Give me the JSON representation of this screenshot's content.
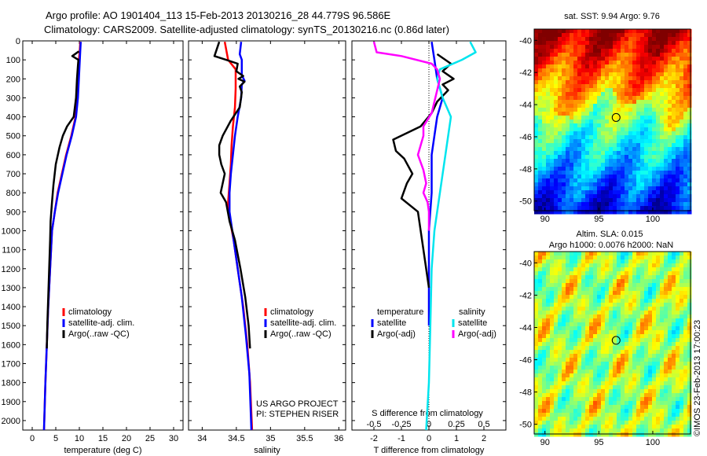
{
  "title": {
    "line1": "Argo profile: AO 1901404_113 15-Feb-2013 20130216_28 44.779S 96.586E",
    "line2": "Climatology: CARS2009. Satellite-adjusted climatology: synTS_20130216.nc (0.86d later)"
  },
  "credit": {
    "project": "US ARGO PROJECT",
    "pi": "PI: STEPHEN RISER",
    "stamp": "©IMOS 23-Feb-2013 17:00:23"
  },
  "colors": {
    "climatology": "#ff0000",
    "satellite": "#0000ff",
    "argo": "#000000",
    "satellite_salinity": "#00e5ee",
    "argo_salinity_adj": "#ff00ff"
  },
  "chart_data": [
    {
      "type": "line",
      "panel": "temperature",
      "xlabel": "temperature (deg C)",
      "ylabel": "",
      "xlim": [
        -2,
        32
      ],
      "ylim": [
        2050,
        0
      ],
      "xticks": [
        "0",
        "5",
        "10",
        "15",
        "20",
        "25",
        "30"
      ],
      "yticks": [
        "0",
        "100",
        "200",
        "300",
        "400",
        "500",
        "600",
        "700",
        "800",
        "900",
        "1000",
        "1100",
        "1200",
        "1300",
        "1400",
        "1500",
        "1600",
        "1700",
        "1800",
        "1900",
        "2000"
      ],
      "legend": [
        "climatology",
        "satellite-adj. clim.",
        "Argo(..raw -QC)"
      ],
      "series": [
        {
          "name": "climatology",
          "color": "#ff0000",
          "points": [
            [
              10.2,
              5
            ],
            [
              10.1,
              50
            ],
            [
              9.9,
              100
            ],
            [
              9.7,
              200
            ],
            [
              9.6,
              300
            ],
            [
              9.2,
              400
            ],
            [
              8.3,
              500
            ],
            [
              7.2,
              600
            ],
            [
              6.3,
              700
            ],
            [
              5.4,
              800
            ],
            [
              4.8,
              900
            ],
            [
              4.2,
              1000
            ],
            [
              3.8,
              1200
            ],
            [
              3.4,
              1400
            ],
            [
              3.1,
              1600
            ],
            [
              2.8,
              1800
            ],
            [
              2.5,
              2050
            ]
          ]
        },
        {
          "name": "satellite-adj. clim.",
          "color": "#0000ff",
          "points": [
            [
              10.3,
              5
            ],
            [
              10.2,
              50
            ],
            [
              10.1,
              100
            ],
            [
              9.9,
              200
            ],
            [
              9.7,
              300
            ],
            [
              9.3,
              400
            ],
            [
              8.4,
              500
            ],
            [
              7.3,
              600
            ],
            [
              6.4,
              700
            ],
            [
              5.5,
              800
            ],
            [
              4.8,
              900
            ],
            [
              4.2,
              1000
            ],
            [
              3.8,
              1200
            ],
            [
              3.4,
              1400
            ],
            [
              3.1,
              1600
            ],
            [
              2.8,
              1800
            ],
            [
              2.5,
              2050
            ]
          ]
        },
        {
          "name": "Argo(..raw -QC)",
          "color": "#000000",
          "points": [
            [
              9.9,
              55
            ],
            [
              8.5,
              80
            ],
            [
              9.8,
              100
            ],
            [
              9.7,
              130
            ],
            [
              9.5,
              200
            ],
            [
              9.3,
              300
            ],
            [
              8.8,
              400
            ],
            [
              7.4,
              450
            ],
            [
              6.5,
              500
            ],
            [
              5.8,
              560
            ],
            [
              5.0,
              650
            ],
            [
              4.5,
              760
            ],
            [
              4.2,
              850
            ],
            [
              3.9,
              950
            ],
            [
              3.8,
              1050
            ],
            [
              3.6,
              1200
            ],
            [
              3.4,
              1350
            ],
            [
              3.2,
              1500
            ],
            [
              3.1,
              1620
            ]
          ]
        }
      ]
    },
    {
      "type": "line",
      "panel": "salinity",
      "xlabel": "salinity",
      "ylabel": "",
      "xlim": [
        33.8,
        36.1
      ],
      "ylim": [
        2050,
        0
      ],
      "xticks": [
        "34",
        "34.5",
        "35",
        "35.5",
        "36"
      ],
      "legend": [
        "climatology",
        "satellite-adj. clim.",
        "Argo(..raw -QC)"
      ],
      "series": [
        {
          "name": "climatology",
          "color": "#ff0000",
          "points": [
            [
              34.33,
              5
            ],
            [
              34.38,
              100
            ],
            [
              34.49,
              150
            ],
            [
              34.49,
              250
            ],
            [
              34.48,
              350
            ],
            [
              34.45,
              450
            ],
            [
              34.43,
              550
            ],
            [
              34.42,
              650
            ],
            [
              34.4,
              750
            ],
            [
              34.38,
              850
            ],
            [
              34.41,
              950
            ],
            [
              34.46,
              1050
            ],
            [
              34.52,
              1200
            ],
            [
              34.6,
              1400
            ],
            [
              34.66,
              1600
            ],
            [
              34.7,
              1800
            ],
            [
              34.73,
              2050
            ]
          ]
        },
        {
          "name": "satellite-adj. clim.",
          "color": "#0000ff",
          "points": [
            [
              34.57,
              5
            ],
            [
              34.55,
              70
            ],
            [
              34.58,
              100
            ],
            [
              34.58,
              180
            ],
            [
              34.62,
              210
            ],
            [
              34.58,
              230
            ],
            [
              34.57,
              300
            ],
            [
              34.52,
              400
            ],
            [
              34.48,
              500
            ],
            [
              34.45,
              600
            ],
            [
              34.42,
              700
            ],
            [
              34.4,
              800
            ],
            [
              34.4,
              900
            ],
            [
              34.44,
              1000
            ],
            [
              34.5,
              1150
            ],
            [
              34.58,
              1350
            ],
            [
              34.64,
              1550
            ],
            [
              34.69,
              1750
            ],
            [
              34.72,
              2050
            ]
          ]
        },
        {
          "name": "Argo(..raw -QC)",
          "color": "#000000",
          "points": [
            [
              34.25,
              5
            ],
            [
              34.18,
              80
            ],
            [
              34.35,
              100
            ],
            [
              34.52,
              120
            ],
            [
              34.5,
              160
            ],
            [
              34.6,
              185
            ],
            [
              34.53,
              200
            ],
            [
              34.62,
              215
            ],
            [
              34.55,
              240
            ],
            [
              34.58,
              270
            ],
            [
              34.55,
              350
            ],
            [
              34.42,
              420
            ],
            [
              34.3,
              500
            ],
            [
              34.25,
              550
            ],
            [
              34.25,
              600
            ],
            [
              34.28,
              650
            ],
            [
              34.33,
              700
            ],
            [
              34.3,
              750
            ],
            [
              34.27,
              800
            ],
            [
              34.35,
              850
            ],
            [
              34.4,
              950
            ],
            [
              34.48,
              1050
            ],
            [
              34.56,
              1200
            ],
            [
              34.63,
              1350
            ],
            [
              34.68,
              1500
            ],
            [
              34.7,
              1620
            ]
          ]
        }
      ]
    },
    {
      "type": "line",
      "panel": "difference",
      "xlabel": "T difference from climatology",
      "xlabel_top": "S difference from climatology",
      "ylabel": "",
      "xlim": [
        -2.8,
        2.8
      ],
      "ylim": [
        2050,
        0
      ],
      "xticks": [
        "-2",
        "-1",
        "0",
        "1",
        "2"
      ],
      "sticks": [
        "-0.5",
        "-0.25",
        "0",
        "0.25",
        "0.5"
      ],
      "legend": {
        "temperature_header": "temperature",
        "salinity_header": "salinity",
        "t_items": [
          "satellite",
          "Argo(-adj)"
        ],
        "s_items": [
          "satellite",
          "Argo(-adj)"
        ]
      },
      "series": [
        {
          "name": "satellite",
          "group": "temperature",
          "color": "#0000ff",
          "points": [
            [
              0.1,
              5
            ],
            [
              0.2,
              100
            ],
            [
              0.3,
              200
            ],
            [
              0.5,
              300
            ],
            [
              0.3,
              400
            ],
            [
              0.2,
              500
            ],
            [
              0.1,
              600
            ],
            [
              0.1,
              800
            ],
            [
              0.0,
              1000
            ],
            [
              0.0,
              1200
            ],
            [
              0.0,
              1500
            ]
          ]
        },
        {
          "name": "Argo(-adj)",
          "group": "temperature",
          "color": "#000000",
          "points": [
            [
              0.3,
              70
            ],
            [
              0.8,
              120
            ],
            [
              0.5,
              160
            ],
            [
              0.9,
              200
            ],
            [
              0.5,
              230
            ],
            [
              0.7,
              260
            ],
            [
              0.3,
              320
            ],
            [
              0.1,
              380
            ],
            [
              -0.3,
              450
            ],
            [
              -1.3,
              520
            ],
            [
              -1.2,
              580
            ],
            [
              -0.9,
              620
            ],
            [
              -0.6,
              700
            ],
            [
              -0.8,
              750
            ],
            [
              -1.0,
              830
            ],
            [
              -0.4,
              900
            ],
            [
              -0.3,
              1000
            ],
            [
              -0.2,
              1100
            ],
            [
              -0.1,
              1200
            ],
            [
              0.0,
              1300
            ]
          ]
        },
        {
          "name": "satellite",
          "group": "salinity",
          "color": "#00e5ee",
          "points": [
            [
              1.5,
              5
            ],
            [
              1.7,
              60
            ],
            [
              1.2,
              100
            ],
            [
              0.4,
              150
            ],
            [
              0.3,
              200
            ],
            [
              0.5,
              300
            ],
            [
              0.8,
              400
            ],
            [
              0.7,
              500
            ],
            [
              0.6,
              600
            ],
            [
              0.5,
              700
            ],
            [
              0.4,
              800
            ],
            [
              0.3,
              900
            ],
            [
              0.2,
              1000
            ],
            [
              0.1,
              1200
            ],
            [
              0.05,
              1500
            ],
            [
              0.0,
              1800
            ],
            [
              -0.1,
              2050
            ]
          ]
        },
        {
          "name": "Argo(-adj)",
          "group": "salinity",
          "color": "#ff00ff",
          "points": [
            [
              -2.0,
              5
            ],
            [
              -1.9,
              60
            ],
            [
              -1.0,
              80
            ],
            [
              0.1,
              120
            ],
            [
              0.3,
              150
            ],
            [
              0.4,
              200
            ],
            [
              0.3,
              260
            ],
            [
              0.2,
              320
            ],
            [
              0.1,
              380
            ],
            [
              -0.2,
              450
            ],
            [
              -0.2,
              500
            ],
            [
              -0.4,
              600
            ],
            [
              -0.2,
              680
            ],
            [
              -0.1,
              750
            ],
            [
              -0.2,
              800
            ],
            [
              -0.05,
              850
            ],
            [
              0.0,
              900
            ],
            [
              0.0,
              1000
            ]
          ]
        }
      ]
    },
    {
      "type": "heatmap",
      "panel": "sst-map",
      "title": "sat. SST: 9.94  Argo: 9.76",
      "xticks": [
        "90",
        "95",
        "100"
      ],
      "yticks": [
        "-40",
        "-42",
        "-44",
        "-46",
        "-48",
        "-50"
      ],
      "xlim": [
        89,
        103.5
      ],
      "ylim": [
        -50.6,
        -39.3
      ],
      "marker": {
        "lon": 96.6,
        "lat": -44.8
      }
    },
    {
      "type": "heatmap",
      "panel": "sla-map",
      "title_line1": "Altim. SLA: 0.015",
      "title_line2": "Argo h1000: 0.0076 h2000: NaN",
      "xticks": [
        "90",
        "95",
        "100"
      ],
      "yticks": [
        "-40",
        "-42",
        "-44",
        "-46",
        "-48",
        "-50"
      ],
      "xlim": [
        89,
        103.5
      ],
      "ylim": [
        -50.6,
        -39.3
      ],
      "marker": {
        "lon": 96.6,
        "lat": -44.8
      }
    }
  ]
}
